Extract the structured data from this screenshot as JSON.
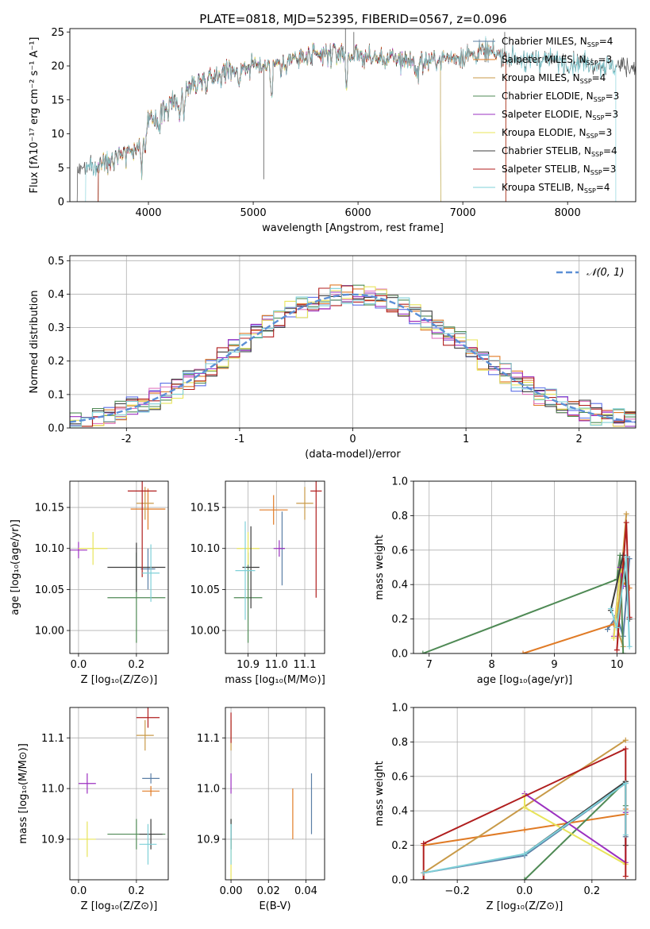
{
  "figure": {
    "title": "PLATE=0818, MJD=52395, FIBERID=0567, z=0.096"
  },
  "colors": {
    "Chabrier MILES": "#5b7fa6",
    "Salpeter MILES": "#e07b26",
    "Kroupa MILES": "#c89a48",
    "Chabrier ELODIE": "#4f8a55",
    "Salpeter ELODIE": "#9b30c0",
    "Kroupa ELODIE": "#e8e45a",
    "Chabrier STELIB": "#3c3c3c",
    "Salpeter STELIB": "#b01e1e",
    "Kroupa STELIB": "#7fd0d8",
    "Hist Chabrier MILES": "#5b6fe6",
    "Hist Kroupa MILES": "#e07ac0",
    "Normal": "#5b8fd6"
  },
  "chart_data": [
    {
      "id": "spectrum",
      "type": "line",
      "title": "PLATE=0818, MJD=52395, FIBERID=0567, z=0.096",
      "xlabel": "wavelength [Angstrom, rest frame]",
      "ylabel": "Flux [fλ10⁻¹⁷ erg cm⁻² s⁻¹ A⁻¹]",
      "xlim": [
        3250,
        8650
      ],
      "ylim": [
        0,
        25.5
      ],
      "xticks": [
        4000,
        5000,
        6000,
        7000,
        8000
      ],
      "yticks": [
        0,
        5,
        10,
        15,
        20,
        25
      ],
      "legend_position": "top-right",
      "legend": [
        "Chabrier MILES, N_SSP=4",
        "Salpeter MILES, N_SSP=3",
        "Kroupa MILES, N_SSP=4",
        "Chabrier ELODIE, N_SSP=3",
        "Salpeter ELODIE, N_SSP=3",
        "Kroupa ELODIE, N_SSP=3",
        "Chabrier STELIB, N_SSP=4",
        "Salpeter STELIB, N_SSP=3",
        "Kroupa STELIB, N_SSP=4"
      ],
      "continuum": [
        [
          3500,
          5.0
        ],
        [
          3600,
          6.0
        ],
        [
          3700,
          7.0
        ],
        [
          3800,
          7.5
        ],
        [
          3900,
          8.0
        ],
        [
          3950,
          10.5
        ],
        [
          4000,
          11.5
        ],
        [
          4100,
          13.0
        ],
        [
          4200,
          14.0
        ],
        [
          4300,
          15.5
        ],
        [
          4400,
          17.0
        ],
        [
          4600,
          18.5
        ],
        [
          4800,
          19.5
        ],
        [
          5000,
          20.0
        ],
        [
          5200,
          20.5
        ],
        [
          5400,
          21.0
        ],
        [
          5600,
          21.3
        ],
        [
          5800,
          22.0
        ],
        [
          6000,
          21.5
        ],
        [
          6200,
          21.0
        ],
        [
          6400,
          21.0
        ],
        [
          6600,
          20.5
        ],
        [
          6800,
          21.0
        ],
        [
          7000,
          21.5
        ],
        [
          7200,
          22.0
        ],
        [
          7400,
          21.5
        ],
        [
          7600,
          21.0
        ],
        [
          7800,
          21.0
        ],
        [
          8000,
          20.5
        ],
        [
          8200,
          20.5
        ],
        [
          8400,
          20.0
        ]
      ],
      "absorption_lines": [
        [
          3934,
          5.0
        ],
        [
          3969,
          4.0
        ],
        [
          4102,
          2.5
        ],
        [
          4300,
          3.0
        ],
        [
          4340,
          2.5
        ],
        [
          4861,
          2.5
        ],
        [
          5175,
          5.0
        ],
        [
          5270,
          2.0
        ],
        [
          5890,
          5.0
        ],
        [
          6563,
          2.5
        ],
        [
          7600,
          2.5
        ]
      ],
      "spikes": [
        [
          5100,
          3.3
        ],
        [
          5740,
          22.5
        ],
        [
          5880,
          25.5
        ],
        [
          5960,
          25.0
        ],
        [
          7400,
          25.0
        ]
      ],
      "model_range": {
        "Chabrier MILES": [
          3520,
          7410
        ],
        "Salpeter MILES": [
          3520,
          7410
        ],
        "Kroupa MILES": [
          3520,
          7410
        ],
        "Chabrier ELODIE": [
          3520,
          6790
        ],
        "Salpeter ELODIE": [
          3520,
          6790
        ],
        "Kroupa ELODIE": [
          3520,
          6790
        ],
        "Chabrier STELIB": [
          3320,
          8660
        ],
        "Salpeter STELIB": [
          3520,
          7410
        ],
        "Kroupa STELIB": [
          3400,
          8460
        ]
      }
    },
    {
      "id": "residual_hist",
      "type": "histogram",
      "xlabel": "(data-model)/error",
      "ylabel": "Normed distribution",
      "xlim": [
        -2.5,
        2.5
      ],
      "ylim": [
        0,
        0.515
      ],
      "xticks": [
        -2,
        -1,
        0,
        1,
        2
      ],
      "yticks": [
        0.0,
        0.1,
        0.2,
        0.3,
        0.4,
        0.5
      ],
      "grid": true,
      "legend_position": "top-right",
      "normal_label": "𝒩(0, 1)",
      "bin_edges": {
        "start": -2.5,
        "width": 0.1,
        "count": 50
      },
      "series_colors": [
        "Hist Chabrier MILES",
        "Salpeter MILES",
        "Hist Kroupa MILES",
        "Chabrier ELODIE",
        "Salpeter ELODIE",
        "Kroupa ELODIE",
        "Chabrier STELIB",
        "Salpeter STELIB",
        "Kroupa STELIB"
      ]
    },
    {
      "id": "age_vs_Z",
      "type": "errorbar",
      "xlabel": "Z [log₁₀(Z/Z⊙)]",
      "ylabel": "age  [log₁₀(age/yr)]",
      "xlim": [
        -0.03,
        0.31
      ],
      "ylim": [
        9.972,
        10.182
      ],
      "xticks": [
        0.0,
        0.2
      ],
      "yticks": [
        10.0,
        10.05,
        10.1,
        10.15
      ],
      "grid": true,
      "points": [
        {
          "name": "Chabrier MILES",
          "x": 0.24,
          "y": 10.075,
          "xerr": 0.025,
          "yerr": 0.025
        },
        {
          "name": "Salpeter MILES",
          "x": 0.24,
          "y": 10.148,
          "xerr": 0.06,
          "yerr": 0.025
        },
        {
          "name": "Kroupa MILES",
          "x": 0.23,
          "y": 10.155,
          "xerr": 0.03,
          "yerr": 0.02
        },
        {
          "name": "Chabrier ELODIE",
          "x": 0.2,
          "y": 10.04,
          "xerr": 0.1,
          "yerr": 0.055
        },
        {
          "name": "Salpeter ELODIE",
          "x": 0.0,
          "y": 10.098,
          "xerr": 0.03,
          "yerr": 0.01
        },
        {
          "name": "Kroupa ELODIE",
          "x": 0.05,
          "y": 10.1,
          "xerr": 0.05,
          "yerr": 0.02
        },
        {
          "name": "Chabrier STELIB",
          "x": 0.2,
          "y": 10.077,
          "xerr": 0.1,
          "yerr": 0.03
        },
        {
          "name": "Salpeter STELIB",
          "x": 0.22,
          "y": 10.17,
          "xerr": 0.05,
          "yerr": 0.105
        },
        {
          "name": "Kroupa STELIB",
          "x": 0.25,
          "y": 10.07,
          "xerr": 0.03,
          "yerr": 0.035
        }
      ]
    },
    {
      "id": "age_vs_mass",
      "type": "errorbar",
      "xlabel": "mass [log₁₀(M/M⊙)]",
      "ylabel": "",
      "xlim": [
        10.82,
        11.17
      ],
      "ylim": [
        9.972,
        10.182
      ],
      "xticks": [
        10.9,
        11.0,
        11.1
      ],
      "yticks": [
        10.0,
        10.05,
        10.1,
        10.15
      ],
      "grid": true,
      "points": [
        {
          "name": "Chabrier MILES",
          "x": 11.02,
          "y": 10.1,
          "xerr": 0.01,
          "yerr": 0.045
        },
        {
          "name": "Salpeter MILES",
          "x": 10.99,
          "y": 10.147,
          "xerr": 0.05,
          "yerr": 0.018
        },
        {
          "name": "Kroupa MILES",
          "x": 11.1,
          "y": 10.155,
          "xerr": 0.03,
          "yerr": 0.02
        },
        {
          "name": "Chabrier ELODIE",
          "x": 10.9,
          "y": 10.04,
          "xerr": 0.05,
          "yerr": 0.055
        },
        {
          "name": "Salpeter ELODIE",
          "x": 11.01,
          "y": 10.1,
          "xerr": 0.02,
          "yerr": 0.01
        },
        {
          "name": "Kroupa ELODIE",
          "x": 10.9,
          "y": 10.1,
          "xerr": 0.04,
          "yerr": 0.02
        },
        {
          "name": "Chabrier STELIB",
          "x": 10.91,
          "y": 10.077,
          "xerr": 0.03,
          "yerr": 0.05
        },
        {
          "name": "Salpeter STELIB",
          "x": 11.14,
          "y": 10.17,
          "xerr": 0.02,
          "yerr": 0.13
        },
        {
          "name": "Kroupa STELIB",
          "x": 10.89,
          "y": 10.073,
          "xerr": 0.035,
          "yerr": 0.06
        }
      ]
    },
    {
      "id": "weight_vs_age",
      "type": "line",
      "xlabel": "age  [log₁₀(age/yr)]",
      "ylabel": "mass weight",
      "xlim": [
        6.75,
        10.3
      ],
      "ylim": [
        0.0,
        1.0
      ],
      "xticks": [
        7,
        8,
        9,
        10
      ],
      "yticks": [
        0.0,
        0.2,
        0.4,
        0.6,
        0.8,
        1.0
      ],
      "grid": true,
      "series": [
        {
          "name": "Chabrier MILES",
          "points": [
            [
              9.85,
              0.14
            ],
            [
              10.0,
              0.22
            ],
            [
              10.1,
              0.1
            ],
            [
              10.2,
              0.55
            ]
          ]
        },
        {
          "name": "Salpeter MILES",
          "points": [
            [
              8.5,
              0.0
            ],
            [
              9.95,
              0.17
            ],
            [
              10.1,
              0.41
            ],
            [
              10.2,
              0.38
            ]
          ]
        },
        {
          "name": "Kroupa MILES",
          "points": [
            [
              10.15,
              0.81
            ],
            [
              10.0,
              0.15
            ],
            [
              10.1,
              0.04
            ]
          ]
        },
        {
          "name": "Chabrier ELODIE",
          "points": [
            [
              6.9,
              0.0
            ],
            [
              10.0,
              0.43
            ],
            [
              10.05,
              0.57
            ],
            [
              10.1,
              0.0
            ]
          ]
        },
        {
          "name": "Salpeter ELODIE",
          "points": [
            [
              9.95,
              0.1
            ],
            [
              10.05,
              0.5
            ],
            [
              10.1,
              0.39
            ]
          ]
        },
        {
          "name": "Kroupa ELODIE",
          "points": [
            [
              9.95,
              0.09
            ],
            [
              10.05,
              0.49
            ],
            [
              10.15,
              0.42
            ]
          ]
        },
        {
          "name": "Chabrier STELIB",
          "points": [
            [
              9.9,
              0.25
            ],
            [
              10.1,
              0.57
            ],
            [
              10.2,
              0.2
            ]
          ]
        },
        {
          "name": "Salpeter STELIB",
          "points": [
            [
              10.0,
              0.02
            ],
            [
              10.15,
              0.76
            ],
            [
              10.2,
              0.21
            ]
          ]
        },
        {
          "name": "Kroupa STELIB",
          "points": [
            [
              9.9,
              0.26
            ],
            [
              10.0,
              0.15
            ],
            [
              10.15,
              0.56
            ],
            [
              10.2,
              0.04
            ]
          ]
        }
      ]
    },
    {
      "id": "mass_vs_Z",
      "type": "errorbar",
      "xlabel": "Z [log₁₀(Z/Z⊙)]",
      "ylabel": "mass [log₁₀(M/M⊙)]",
      "xlim": [
        -0.03,
        0.31
      ],
      "ylim": [
        10.82,
        11.16
      ],
      "xticks": [
        0.0,
        0.2
      ],
      "yticks": [
        10.9,
        11.0,
        11.1
      ],
      "grid": true,
      "points": [
        {
          "name": "Chabrier MILES",
          "x": 0.25,
          "y": 11.02,
          "xerr": 0.03,
          "yerr": 0.01
        },
        {
          "name": "Salpeter MILES",
          "x": 0.25,
          "y": 10.995,
          "xerr": 0.03,
          "yerr": 0.01
        },
        {
          "name": "Kroupa MILES",
          "x": 0.23,
          "y": 11.105,
          "xerr": 0.03,
          "yerr": 0.03
        },
        {
          "name": "Chabrier ELODIE",
          "x": 0.2,
          "y": 10.91,
          "xerr": 0.1,
          "yerr": 0.03
        },
        {
          "name": "Salpeter ELODIE",
          "x": 0.03,
          "y": 11.01,
          "xerr": 0.03,
          "yerr": 0.02
        },
        {
          "name": "Kroupa ELODIE",
          "x": 0.03,
          "y": 10.9,
          "xerr": 0.03,
          "yerr": 0.035
        },
        {
          "name": "Chabrier STELIB",
          "x": 0.25,
          "y": 10.91,
          "xerr": 0.04,
          "yerr": 0.03
        },
        {
          "name": "Salpeter STELIB",
          "x": 0.24,
          "y": 11.14,
          "xerr": 0.04,
          "yerr": 0.02
        },
        {
          "name": "Kroupa STELIB",
          "x": 0.24,
          "y": 10.89,
          "xerr": 0.03,
          "yerr": 0.04
        }
      ]
    },
    {
      "id": "mass_vs_ebv",
      "type": "errorbar",
      "xlabel": "E(B-V)",
      "ylabel": "",
      "xlim": [
        -0.003,
        0.05
      ],
      "ylim": [
        10.82,
        11.16
      ],
      "xticks": [
        0.0,
        0.02,
        0.04
      ],
      "xticklabels": [
        "0.00",
        "0.02",
        "0.04"
      ],
      "yticks": [
        10.9,
        11.0,
        11.1
      ],
      "grid": true,
      "points": [
        {
          "name": "Chabrier MILES",
          "x": 0.043,
          "y": 10.97,
          "xerr": 0.0,
          "yerr": 0.06
        },
        {
          "name": "Salpeter MILES",
          "x": 0.033,
          "y": 10.95,
          "xerr": 0.0,
          "yerr": 0.05
        },
        {
          "name": "Kroupa MILES",
          "x": 0.0,
          "y": 11.105,
          "xerr": 0.0,
          "yerr": 0.03
        },
        {
          "name": "Chabrier ELODIE",
          "x": 0.0,
          "y": 10.91,
          "xerr": 0.0,
          "yerr": 0.03
        },
        {
          "name": "Salpeter ELODIE",
          "x": 0.0,
          "y": 11.01,
          "xerr": 0.0,
          "yerr": 0.02
        },
        {
          "name": "Kroupa ELODIE",
          "x": 0.0,
          "y": 10.86,
          "xerr": 0.0,
          "yerr": 0.04
        },
        {
          "name": "Chabrier STELIB",
          "x": 0.0,
          "y": 10.91,
          "xerr": 0.0,
          "yerr": 0.03
        },
        {
          "name": "Salpeter STELIB",
          "x": 0.0,
          "y": 11.12,
          "xerr": 0.0,
          "yerr": 0.03
        },
        {
          "name": "Kroupa STELIB",
          "x": 0.0,
          "y": 10.89,
          "xerr": 0.0,
          "yerr": 0.04
        }
      ]
    },
    {
      "id": "weight_vs_Z",
      "type": "line",
      "xlabel": "Z [log₁₀(Z/Z⊙)]",
      "ylabel": "mass weight",
      "xlim": [
        -0.33,
        0.33
      ],
      "ylim": [
        0.0,
        1.0
      ],
      "xticks": [
        -0.2,
        0.0,
        0.2
      ],
      "xticklabels": [
        "−0.2",
        "0.0",
        "0.2"
      ],
      "yticks": [
        0.0,
        0.2,
        0.4,
        0.6,
        0.8,
        1.0
      ],
      "grid": true,
      "series": [
        {
          "name": "Chabrier MILES",
          "points": [
            [
              -0.3,
              0.04
            ],
            [
              0.0,
              0.14
            ],
            [
              0.3,
              0.56
            ],
            [
              0.3,
              0.25
            ]
          ]
        },
        {
          "name": "Salpeter MILES",
          "points": [
            [
              -0.3,
              0.2
            ],
            [
              0.0,
              0.29
            ],
            [
              0.3,
              0.38
            ],
            [
              0.3,
              0.41
            ]
          ]
        },
        {
          "name": "Kroupa MILES",
          "points": [
            [
              -0.3,
              0.0
            ],
            [
              -0.3,
              0.04
            ],
            [
              0.3,
              0.81
            ]
          ]
        },
        {
          "name": "Chabrier ELODIE",
          "points": [
            [
              0.0,
              0.0
            ],
            [
              0.3,
              0.57
            ],
            [
              0.3,
              0.43
            ]
          ]
        },
        {
          "name": "Salpeter ELODIE",
          "points": [
            [
              0.0,
              0.5
            ],
            [
              0.3,
              0.1
            ],
            [
              0.3,
              0.39
            ]
          ]
        },
        {
          "name": "Kroupa ELODIE",
          "points": [
            [
              0.0,
              0.49
            ],
            [
              0.0,
              0.42
            ],
            [
              0.3,
              0.09
            ]
          ]
        },
        {
          "name": "Chabrier STELIB",
          "points": [
            [
              0.0,
              0.15
            ],
            [
              0.3,
              0.57
            ],
            [
              0.3,
              0.2
            ]
          ]
        },
        {
          "name": "Salpeter STELIB",
          "points": [
            [
              -0.3,
              0.0
            ],
            [
              -0.3,
              0.21
            ],
            [
              0.3,
              0.76
            ],
            [
              0.3,
              0.02
            ]
          ]
        },
        {
          "name": "Kroupa STELIB",
          "points": [
            [
              -0.3,
              0.04
            ],
            [
              0.0,
              0.15
            ],
            [
              0.3,
              0.56
            ],
            [
              0.3,
              0.26
            ]
          ]
        }
      ]
    }
  ]
}
